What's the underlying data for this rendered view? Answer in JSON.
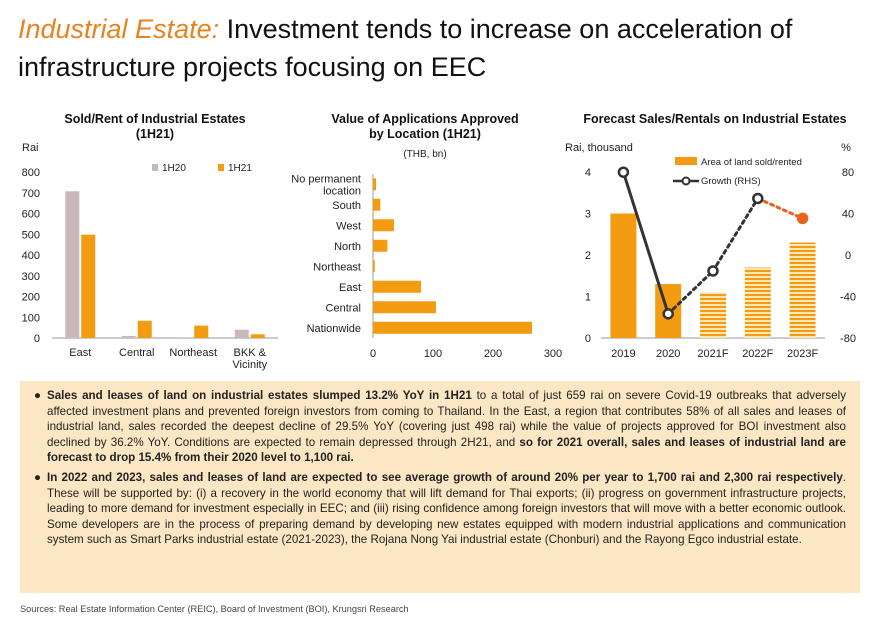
{
  "header": {
    "title_accent": "Industrial Estate:",
    "title_rest": " Investment tends to increase on acceleration of infrastructure projects focusing on EEC"
  },
  "colors": {
    "accent": "#E8821E",
    "bar_orange": "#F39C12",
    "bar_grey": "#C8B8B8",
    "box_bg": "#FCE7C5"
  },
  "chart_data": [
    {
      "type": "bar",
      "title": "Sold/Rent of Industrial Estates (1H21)",
      "title_line1": "Sold/Rent of Industrial Estates",
      "title_line2": "(1H21)",
      "ylabel": "Rai",
      "categories": [
        "East",
        "Central",
        "Northeast",
        "BKK & Vicinity"
      ],
      "category_lines": [
        [
          "East"
        ],
        [
          "Central"
        ],
        [
          "Northeast"
        ],
        [
          "BKK &",
          "Vicinity"
        ]
      ],
      "series": [
        {
          "name": "1H20",
          "values": [
            707,
            10,
            1,
            40
          ],
          "color": "#C8B8B8"
        },
        {
          "name": "1H21",
          "values": [
            498,
            83,
            60,
            18
          ],
          "color": "#F39C12"
        }
      ],
      "ylim": [
        0,
        800
      ],
      "yticks": [
        "0",
        "100",
        "200",
        "300",
        "400",
        "500",
        "600",
        "700",
        "800"
      ],
      "legend": "top-right"
    },
    {
      "type": "bar",
      "orientation": "horizontal",
      "title": "Value of Applications Approved by Location (1H21)",
      "title_line1": "Value of Applications Approved",
      "title_line2": "by Location (1H21)",
      "unit": "(THB, bn)",
      "categories": [
        "No permanent location",
        "South",
        "West",
        "North",
        "Northeast",
        "East",
        "Central",
        "Nationwide"
      ],
      "category_lines": [
        [
          "No permanent",
          "location"
        ],
        [
          "South"
        ],
        [
          "West"
        ],
        [
          "North"
        ],
        [
          "Northeast"
        ],
        [
          "East"
        ],
        [
          "Central"
        ],
        [
          "Nationwide"
        ]
      ],
      "values": [
        5,
        12,
        35,
        24,
        3,
        80,
        105,
        265
      ],
      "xlim": [
        0,
        300
      ],
      "xticks": [
        "0",
        "100",
        "200",
        "300"
      ]
    },
    {
      "type": "bar",
      "title": "Forecast Sales/Rentals on Industrial Estates",
      "ylabel_left": "Rai, thousand",
      "ylabel_right": "%",
      "categories": [
        "2019",
        "2020",
        "2021F",
        "2022F",
        "2023F"
      ],
      "series": [
        {
          "name": "Area of land sold/rented",
          "values": [
            3.0,
            1.3,
            1.1,
            1.7,
            2.3
          ],
          "axis": "left"
        },
        {
          "name": "Growth (RHS)",
          "type": "line",
          "values": [
            79.8,
            -56.7,
            -15.4,
            54.5,
            35.3
          ],
          "axis": "right"
        }
      ],
      "ylim_left": [
        0,
        4
      ],
      "ylim_right": [
        -80,
        80
      ],
      "yticks_left": [
        "0",
        "1",
        "2",
        "3",
        "4"
      ],
      "yticks_right": [
        "-80",
        "-40",
        "0",
        "40",
        "80"
      ],
      "legend": "top-right"
    }
  ],
  "commentary": {
    "p1_bold": "Sales and leases of land on industrial estates slumped 13.2% YoY in 1H21",
    "p1_text": " to a total of just 659 rai on severe Covid-19 outbreaks that adversely affected investment plans and prevented foreign investors from coming to Thailand. In the East, a region that contributes 58% of all sales and leases of industrial land, sales recorded the deepest decline of 29.5% YoY (covering just 498 rai) while the value of projects approved for BOI investment also declined by 36.2% YoY. Conditions are expected to remain depressed through 2H21, and ",
    "p1_bold2": "so for 2021 overall, sales and leases of industrial land are forecast to drop 15.4% from their 2020 level to 1,100 rai.",
    "p2_bold": "In 2022 and 2023, sales and leases of land are expected to see average growth of around 20% per year to 1,700 rai and 2,300 rai respectively",
    "p2_text": ". These will be supported by: (i) a recovery in the world economy that will lift demand for Thai exports; (ii) progress on government infrastructure projects, leading to more demand for investment especially in EEC; and (iii) rising confidence among foreign investors that will move with a better economic outlook. Some developers are in the process of preparing demand by developing new estates equipped with modern industrial applications and communication system such as Smart Parks industrial estate (2021-2023), the Rojana Nong Yai industrial estate (Chonburi) and the Rayong Egco industrial estate."
  },
  "sources": "Sources: Real Estate Information Center (REIC), Board of Investment (BOI), Krungsri Research"
}
